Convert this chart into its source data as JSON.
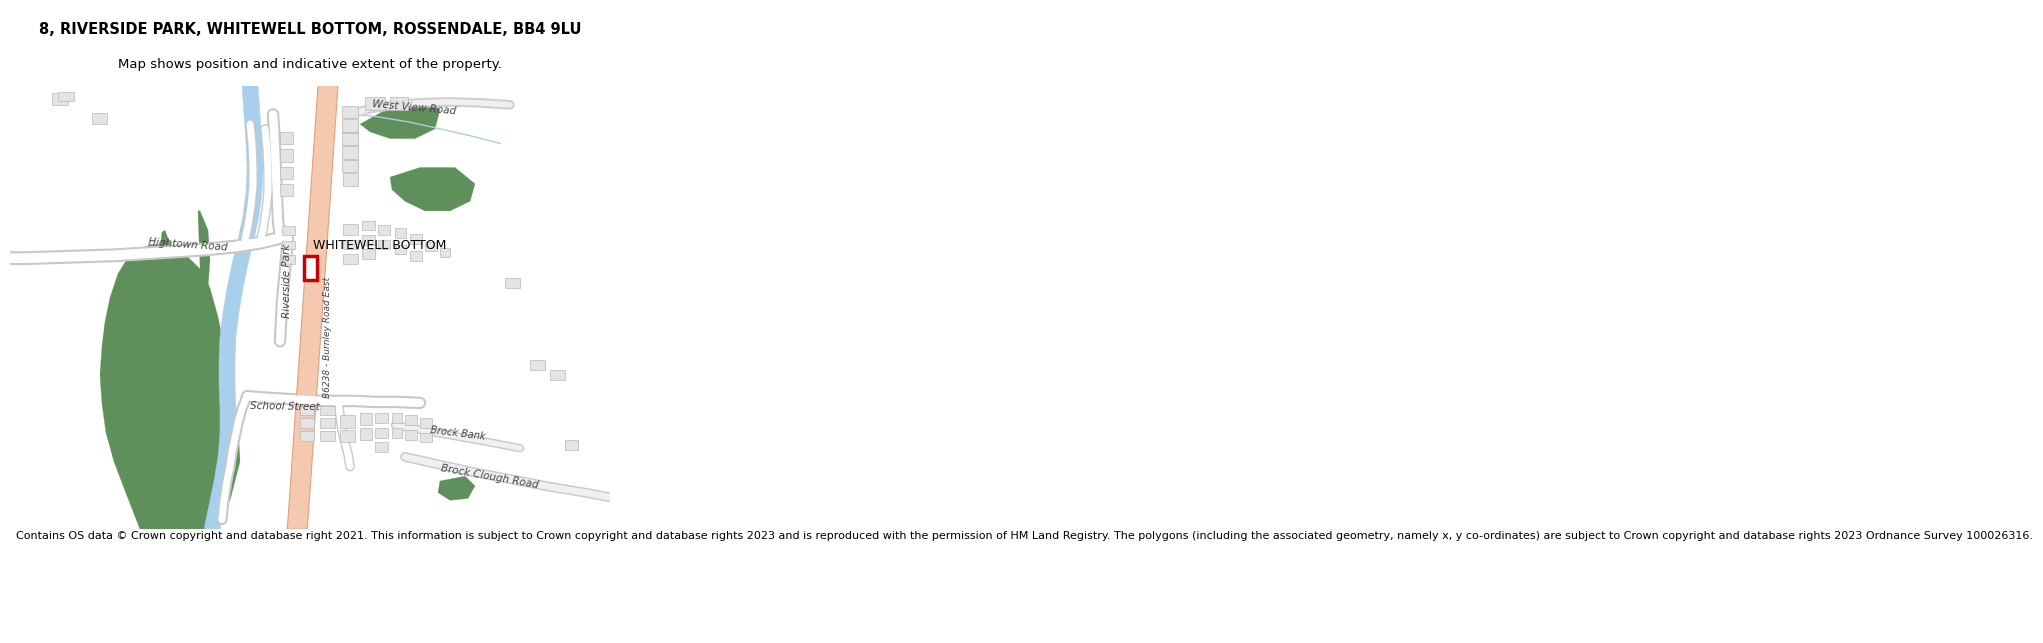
{
  "title_line1": "8, RIVERSIDE PARK, WHITEWELL BOTTOM, ROSSENDALE, BB4 9LU",
  "title_line2": "Map shows position and indicative extent of the property.",
  "footer": "Contains OS data © Crown copyright and database right 2021. This information is subject to Crown copyright and database rights 2023 and is reproduced with the permission of HM Land Registry. The polygons (including the associated geometry, namely x, y co-ordinates) are subject to Crown copyright and database rights 2023 Ordnance Survey 100026316.",
  "title_fontsize": 10.5,
  "title2_fontsize": 9.5,
  "footer_fontsize": 8.0,
  "map_bg": "#ffffff",
  "fig_bg": "#ffffff",
  "green_color": "#5f8f5a",
  "road_main_fill": "#f5c9b0",
  "road_main_edge": "#e0a080",
  "road_minor_fill": "#ffffff",
  "road_minor_edge": "#c8c8c8",
  "water_color": "#a8d0ec",
  "building_fill": "#e4e4e4",
  "building_outline": "#b8b8b8",
  "highlight_color": "#cc0000",
  "label_color": "#444444",
  "thin_road_color": "#b0cce0"
}
